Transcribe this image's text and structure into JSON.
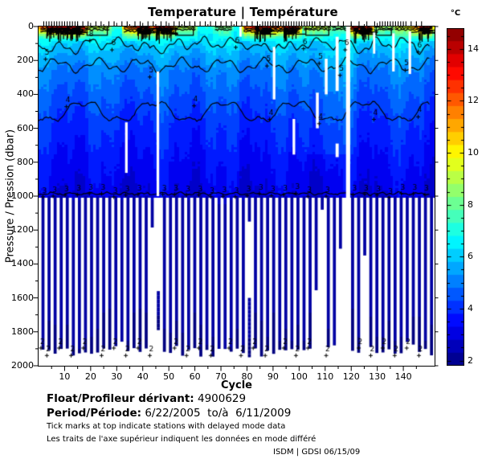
{
  "title": "Temperature | Température",
  "footer": {
    "float_label": "Float/Profileur dérivant:",
    "float_value": "4900629",
    "period_label": "Period/Période:",
    "period_value": "6/22/2005  to/à  6/11/2009",
    "note_en": "Tick marks at top indicate stations with delayed mode data",
    "note_fr": "Les traits de l'axe supérieur indiquent les données en mode différé",
    "credit": "ISDM | GDSI 06/15/09"
  },
  "chart_data": {
    "type": "heatmap",
    "title": "Temperature | Température",
    "xlabel": "Cycle",
    "ylabel": "Pressure / Pression (dbar)",
    "x_range": [
      0,
      152
    ],
    "x_major_ticks": [
      10,
      20,
      30,
      40,
      50,
      60,
      70,
      80,
      90,
      100,
      110,
      120,
      130,
      140
    ],
    "x_minor_step": 5,
    "y_range": [
      0,
      2000
    ],
    "y_major_ticks": [
      0,
      200,
      400,
      600,
      800,
      1000,
      1200,
      1400,
      1600,
      1800,
      2000
    ],
    "y_minor_step": 100,
    "colorbar": {
      "label": "°C",
      "range": [
        1.8,
        14.8
      ],
      "major_ticks": [
        14,
        12,
        10,
        8,
        6,
        4,
        2
      ],
      "segment_step": 0.5,
      "colormap": "jet"
    },
    "surface_layer_depth": 92,
    "temperature_profile": [
      [
        0,
        7.2
      ],
      [
        40,
        6.8
      ],
      [
        92,
        6.3
      ],
      [
        150,
        5.7
      ],
      [
        250,
        5.05
      ],
      [
        400,
        4.5
      ],
      [
        550,
        4.05
      ],
      [
        700,
        3.7
      ],
      [
        850,
        3.35
      ],
      [
        1000,
        3.05
      ]
    ],
    "deep_bar_profile": [
      [
        1000,
        2.45
      ],
      [
        1400,
        2.2
      ],
      [
        1700,
        2.05
      ],
      [
        1950,
        1.9
      ]
    ],
    "surface_warm_events": [
      {
        "cycles": [
          1,
          18
        ],
        "peak": 14.2,
        "red": [
          3,
          16
        ]
      },
      {
        "cycles": [
          18,
          27
        ],
        "peak": 9.6,
        "box": true
      },
      {
        "cycles": [
          33,
          44
        ],
        "peak": 13.2,
        "red": [
          38,
          43
        ]
      },
      {
        "cycles": [
          44,
          52
        ],
        "peak": 14.2,
        "red": [
          45,
          51
        ]
      },
      {
        "cycles": [
          52,
          60
        ],
        "peak": 9.4,
        "box": true
      },
      {
        "cycles": [
          68,
          74
        ],
        "peak": 8.6
      },
      {
        "cycles": [
          79,
          93
        ],
        "peak": 13.6,
        "red": [
          83,
          89
        ]
      },
      {
        "cycles": [
          93,
          100
        ],
        "peak": 14.2,
        "red": [
          94,
          99
        ]
      },
      {
        "cycles": [
          102,
          112
        ],
        "peak": 9.6,
        "box": true
      },
      {
        "cycles": [
          113,
          119
        ],
        "peak": 8.4
      },
      {
        "cycles": [
          120,
          128
        ],
        "peak": 14.0,
        "red": [
          121,
          127
        ]
      },
      {
        "cycles": [
          129,
          136
        ],
        "peak": 9.0,
        "box": true
      },
      {
        "cycles": [
          137,
          143
        ],
        "peak": 10.5
      },
      {
        "cycles": [
          143,
          151
        ],
        "peak": 12.8,
        "red": [
          146,
          150
        ]
      }
    ],
    "contour_lines": [
      {
        "level": 6,
        "base": 98,
        "a1": 26,
        "w1": 11,
        "p1": 0.0,
        "a2": 13,
        "w2": 4.7,
        "p2": 1.0,
        "jit": 8,
        "warm_push": 28
      },
      {
        "level": 5,
        "base": 228,
        "a1": 30,
        "w1": 16,
        "p1": 2.0,
        "a2": 17,
        "w2": 6.3,
        "p2": 0.0,
        "jit": 10
      },
      {
        "level": 4,
        "base": 500,
        "a1": 55,
        "w1": 27,
        "p1": 0.7,
        "a2": 20,
        "w2": 9,
        "p2": 2.2,
        "jit": 12
      },
      {
        "level": 3,
        "base": 985,
        "a1": 6,
        "w1": 7,
        "p1": 0.0,
        "a2": 3,
        "w2": 3.1,
        "p2": 1.2,
        "jit": 7
      }
    ],
    "contour_labels": [
      {
        "t": "8",
        "c": 20,
        "d": 42
      },
      {
        "t": "6",
        "c": 28.5,
        "d": 95
      },
      {
        "t": "6",
        "c": 76,
        "d": 80
      },
      {
        "t": "6",
        "c": 102,
        "d": 88
      },
      {
        "t": "6",
        "c": 118,
        "d": 95
      },
      {
        "t": "6",
        "c": 146,
        "d": 108
      },
      {
        "t": "5",
        "c": 3,
        "d": 150
      },
      {
        "t": "5",
        "c": 43,
        "d": 255
      },
      {
        "t": "5",
        "c": 88,
        "d": 190
      },
      {
        "t": "5",
        "c": 108,
        "d": 175
      },
      {
        "t": "5",
        "c": 116,
        "d": 245
      },
      {
        "t": "5",
        "c": 141,
        "d": 215
      },
      {
        "t": "4",
        "c": 11,
        "d": 430
      },
      {
        "t": "4",
        "c": 60,
        "d": 425
      },
      {
        "t": "4",
        "c": 89,
        "d": 505
      },
      {
        "t": "4",
        "c": 108,
        "d": 530
      },
      {
        "t": "4",
        "c": 129,
        "d": 505
      },
      {
        "t": "4",
        "c": 146,
        "d": 490
      }
    ],
    "label_rows": {
      "threes": [
        2,
        5.9,
        10.5,
        15.2,
        19.8,
        24.5,
        29.2,
        33.8,
        38.5,
        48,
        52.5,
        57.1,
        61.8,
        66.4,
        71.1,
        75.8,
        80.4,
        85.1,
        89.7,
        94.4,
        99.1,
        103.7,
        110.7,
        121,
        125.5,
        130.2,
        134.8,
        139.5,
        144.1,
        148.6
      ],
      "threes_depth": 972,
      "twos": [
        1.2,
        3.5,
        8.2,
        12.8,
        17.5,
        24.5,
        29.2,
        33.8,
        38.5,
        43,
        52.5,
        57.1,
        61.8,
        66.4,
        73.4,
        78,
        82.7,
        87.3,
        94.4,
        99.1,
        103.7,
        110.7,
        123.2,
        127.8,
        132.4,
        137,
        141.6,
        146.3
      ],
      "twos_depths": [
        1872,
        1916
      ]
    },
    "data_gaps": [
      {
        "cycle": 33.7,
        "w": 1.0,
        "d0": 565,
        "d1": 863
      },
      {
        "cycle": 45.8,
        "w": 1.0,
        "d0": 265,
        "d1": 1000
      },
      {
        "cycle": 77.5,
        "w": 0.9,
        "d0": 0,
        "d1": 60
      },
      {
        "cycle": 90.4,
        "w": 1.0,
        "d0": 120,
        "d1": 430
      },
      {
        "cycle": 98.0,
        "w": 1.0,
        "d0": 545,
        "d1": 755
      },
      {
        "cycle": 107.0,
        "w": 1.1,
        "d0": 390,
        "d1": 600
      },
      {
        "cycle": 110.4,
        "w": 1.1,
        "d0": 190,
        "d1": 400
      },
      {
        "cycle": 114.6,
        "w": 1.2,
        "d0": 60,
        "d1": 380
      },
      {
        "cycle": 114.6,
        "w": 1.2,
        "d0": 690,
        "d1": 770
      },
      {
        "cycle": 118.8,
        "w": 1.6,
        "d0": 0,
        "d1": 2000
      },
      {
        "cycle": 128.8,
        "w": 0.9,
        "d0": 35,
        "d1": 160
      },
      {
        "cycle": 136.2,
        "w": 1.0,
        "d0": 40,
        "d1": 265
      },
      {
        "cycle": 142.5,
        "w": 1.0,
        "d0": 28,
        "d1": 280
      }
    ],
    "deep_bars": {
      "start": 1.2,
      "step": 2.33,
      "top": 1000,
      "bottom": 1950,
      "width": 1.15,
      "overrides": {
        "44.2": [
          [
            1000,
            1185
          ]
        ],
        "46.5": [
          [
            1560,
            1790
          ]
        ],
        "80.1": [
          [
            1000,
            1150
          ],
          [
            1600,
            1950
          ]
        ],
        "106.3": [
          [
            1000,
            1555
          ]
        ],
        "108.6": [
          [
            1000,
            1080
          ]
        ],
        "113.9": [
          [
            1000,
            1880
          ]
        ],
        "116.2": [
          [
            1000,
            1310
          ]
        ],
        "118.5": null,
        "125.5": [
          [
            1000,
            1350
          ]
        ]
      }
    },
    "delayed_mode_cycles": [
      2,
      3,
      4,
      5,
      6,
      7,
      8,
      9,
      10,
      11,
      12,
      13,
      14,
      15,
      17,
      19,
      22,
      24,
      27,
      29,
      32,
      34,
      37,
      39,
      42,
      44,
      47,
      49,
      52,
      54,
      56,
      58,
      60,
      62,
      64,
      66,
      68,
      70,
      72,
      74,
      76,
      78,
      80,
      82,
      84,
      86,
      87,
      88,
      89,
      90,
      91,
      92,
      93,
      94,
      95,
      96,
      97,
      98,
      99,
      100,
      101,
      102,
      103,
      104,
      105,
      106,
      108,
      110,
      112,
      115,
      117,
      120,
      123,
      126,
      129,
      131,
      132,
      133,
      134,
      135,
      136,
      137,
      138,
      139,
      140,
      141,
      143,
      145,
      147
    ]
  }
}
